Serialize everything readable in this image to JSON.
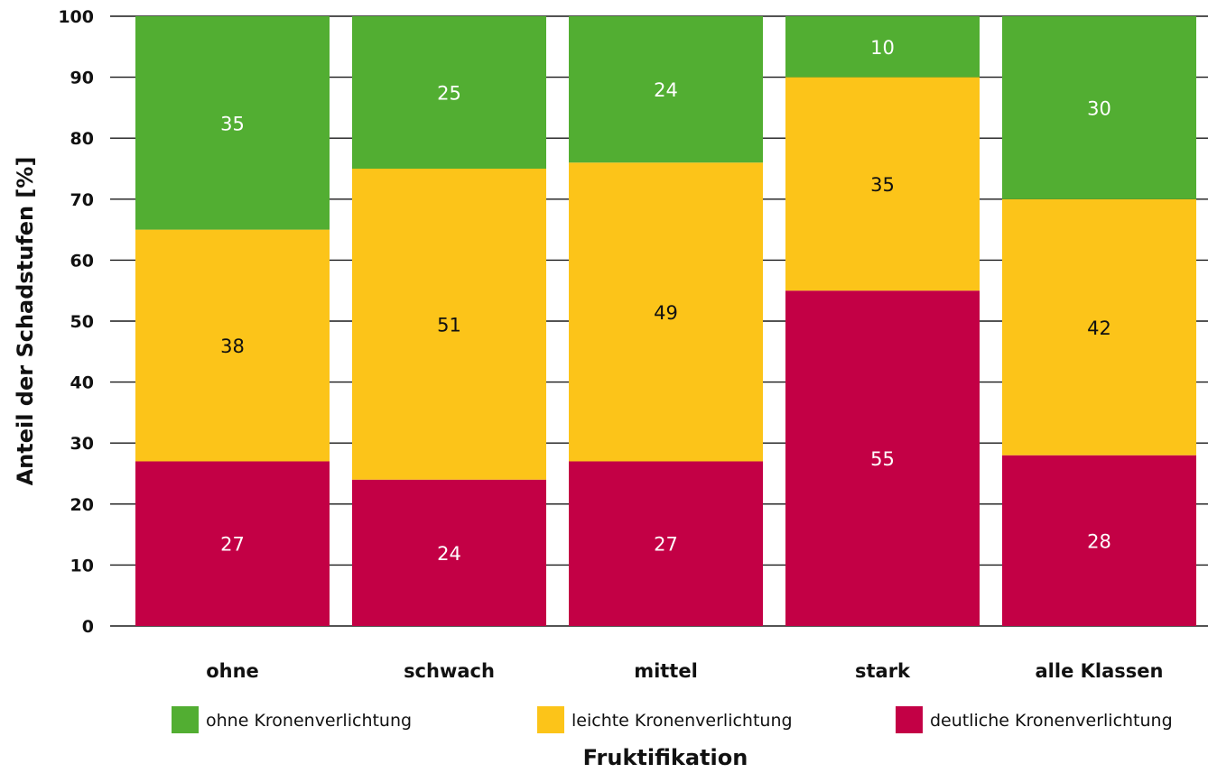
{
  "chart_data": {
    "type": "bar",
    "stacked": true,
    "categories": [
      "ohne",
      "schwach",
      "mittel",
      "stark",
      "alle Klassen"
    ],
    "series": [
      {
        "name": "deutliche Kronenverlichtung",
        "color": "#c30045",
        "label_color": "#ffffff",
        "values": [
          27,
          24,
          27,
          55,
          28
        ]
      },
      {
        "name": "leichte Kronenverlichtung",
        "color": "#fcc419",
        "label_color": "#111111",
        "values": [
          38,
          51,
          49,
          35,
          42
        ]
      },
      {
        "name": "ohne Kronenverlichtung",
        "color": "#52ae32",
        "label_color": "#ffffff",
        "values": [
          35,
          25,
          24,
          10,
          30
        ]
      }
    ],
    "legend_order": [
      2,
      1,
      0
    ],
    "xlabel": "Fruktifikation",
    "ylabel": "Anteil der Schadstufen [%]",
    "ylim": [
      0,
      100
    ],
    "yticks": [
      0,
      10,
      20,
      30,
      40,
      50,
      60,
      70,
      80,
      90,
      100
    ],
    "grid": true,
    "legend_position": "bottom"
  }
}
